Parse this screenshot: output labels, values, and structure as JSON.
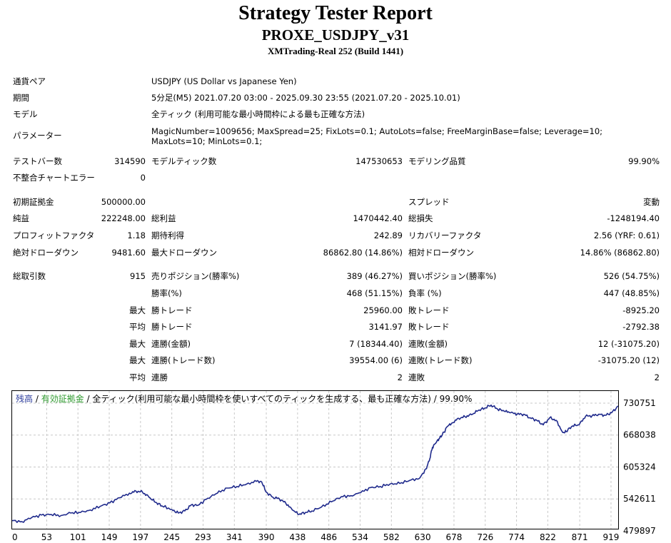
{
  "header": {
    "title": "Strategy Tester Report",
    "subtitle": "PROXE_USDJPY_v31",
    "server": "XMTrading-Real 252 (Build 1441)"
  },
  "info": {
    "symbol_label": "通貨ペア",
    "symbol_value": "USDJPY (US Dollar vs Japanese Yen)",
    "period_label": "期間",
    "period_value": "5分足(M5) 2021.07.20 03:00 - 2025.09.30 23:55 (2021.07.20 - 2025.10.01)",
    "model_label": "モデル",
    "model_value": "全ティック (利用可能な最小時間枠による最も正確な方法)",
    "params_label": "パラメーター",
    "params_value": "MagicNumber=1009656; MaxSpread=25; FixLots=0.1; AutoLots=false; FreeMarginBase=false; Leverage=10; MaxLots=10; MinLots=0.1;"
  },
  "stats": {
    "bars_label": "テストバー数",
    "bars_value": "314590",
    "ticks_label": "モデルティック数",
    "ticks_value": "147530653",
    "quality_label": "モデリング品質",
    "quality_value": "99.90%",
    "mismatch_label": "不整合チャートエラー",
    "mismatch_value": "0",
    "deposit_label": "初期証拠金",
    "deposit_value": "500000.00",
    "spread_label": "スプレッド",
    "spread_value": "変動",
    "net_label": "純益",
    "net_value": "222248.00",
    "gross_profit_label": "総利益",
    "gross_profit_value": "1470442.40",
    "gross_loss_label": "総損失",
    "gross_loss_value": "-1248194.40",
    "pf_label": "プロフィットファクタ",
    "pf_value": "1.18",
    "expected_label": "期待利得",
    "expected_value": "242.89",
    "recovery_label": "リカバリーファクタ",
    "recovery_value": "2.56 (YRF: 0.61)",
    "abs_dd_label": "絶対ドローダウン",
    "abs_dd_value": "9481.60",
    "max_dd_label": "最大ドローダウン",
    "max_dd_value": "86862.80 (14.86%)",
    "rel_dd_label": "相対ドローダウン",
    "rel_dd_value": "14.86% (86862.80)",
    "trades_label": "総取引数",
    "trades_value": "915",
    "short_label": "売りポジション(勝率%)",
    "short_value": "389 (46.27%)",
    "long_label": "買いポジション(勝率%)",
    "long_value": "526 (54.75%)",
    "win_rate_label": "勝率(%)",
    "win_rate_value": "468 (51.15%)",
    "loss_rate_label": "負率 (%)",
    "loss_rate_value": "447 (48.85%)",
    "max_prefix": "最大",
    "avg_prefix": "平均",
    "largest_win_label": "勝トレード",
    "largest_win_value": "25960.00",
    "largest_loss_label": "敗トレード",
    "largest_loss_value": "-8925.20",
    "avg_win_label": "勝トレード",
    "avg_win_value": "3141.97",
    "avg_loss_label": "敗トレード",
    "avg_loss_value": "-2792.38",
    "max_consec_wins_label": "連勝(金額)",
    "max_consec_wins_value": "7 (18344.40)",
    "max_consec_losses_label": "連敗(金額)",
    "max_consec_losses_value": "12 (-31075.20)",
    "max_consec_profit_label": "連勝(トレード数)",
    "max_consec_profit_value": "39554.00 (6)",
    "max_consec_loss_label": "連敗(トレード数)",
    "max_consec_loss_value": "-31075.20 (12)",
    "avg_consec_wins_label": "連勝",
    "avg_consec_wins_value": "2",
    "avg_consec_losses_label": "連敗",
    "avg_consec_losses_value": "2"
  },
  "legend": {
    "balance": "残高",
    "sep1": " / ",
    "equity": "有効証拠金",
    "rest": " / 全ティック(利用可能な最小時間枠を使いすべてのティックを生成する、最も正確な方法) / 99.90%"
  },
  "colors": {
    "balance_line": "#1f2a8c",
    "grid": "#c8c8c8",
    "equity_legend": "#2e9a2e"
  },
  "chart_data": {
    "type": "line",
    "x_ticks": [
      "0",
      "53",
      "101",
      "149",
      "197",
      "245",
      "293",
      "341",
      "390",
      "438",
      "486",
      "534",
      "582",
      "630",
      "678",
      "726",
      "774",
      "822",
      "871",
      "919"
    ],
    "y_ticks": [
      "479897",
      "542611",
      "605324",
      "668038",
      "730751"
    ],
    "ylim": [
      479897,
      730751
    ],
    "xlim": [
      0,
      930
    ],
    "grid": true,
    "series": [
      {
        "name": "残高",
        "x": [
          0,
          15,
          30,
          45,
          60,
          75,
          90,
          105,
          120,
          135,
          150,
          165,
          180,
          190,
          200,
          210,
          220,
          230,
          245,
          255,
          265,
          275,
          285,
          300,
          315,
          330,
          345,
          360,
          375,
          383,
          390,
          400,
          410,
          420,
          430,
          440,
          450,
          460,
          475,
          490,
          505,
          520,
          535,
          550,
          565,
          580,
          595,
          610,
          625,
          635,
          640,
          645,
          650,
          655,
          660,
          668,
          675,
          685,
          695,
          705,
          715,
          725,
          735,
          745,
          755,
          765,
          775,
          785,
          795,
          805,
          815,
          825,
          835,
          845,
          850,
          860,
          870,
          880,
          890,
          900,
          910,
          920,
          930
        ],
        "y": [
          500000,
          498000,
          506000,
          511000,
          512000,
          510000,
          515000,
          516000,
          521000,
          528000,
          535000,
          545000,
          554000,
          558000,
          556000,
          546000,
          536000,
          529000,
          522000,
          515000,
          519000,
          531000,
          530000,
          544000,
          554000,
          564000,
          567000,
          572000,
          577000,
          576000,
          556000,
          546000,
          543000,
          534000,
          521000,
          512000,
          516000,
          519000,
          527000,
          537000,
          547000,
          549000,
          555000,
          565000,
          567000,
          572000,
          573000,
          579000,
          583000,
          602000,
          617000,
          644000,
          652000,
          661000,
          668000,
          685000,
          692000,
          701000,
          704000,
          708000,
          716000,
          721000,
          727000,
          719000,
          715000,
          712000,
          709000,
          709000,
          702000,
          697000,
          688000,
          702000,
          697000,
          673000,
          675000,
          686000,
          688000,
          705000,
          706000,
          709000,
          707000,
          712000,
          725000
        ]
      }
    ]
  }
}
